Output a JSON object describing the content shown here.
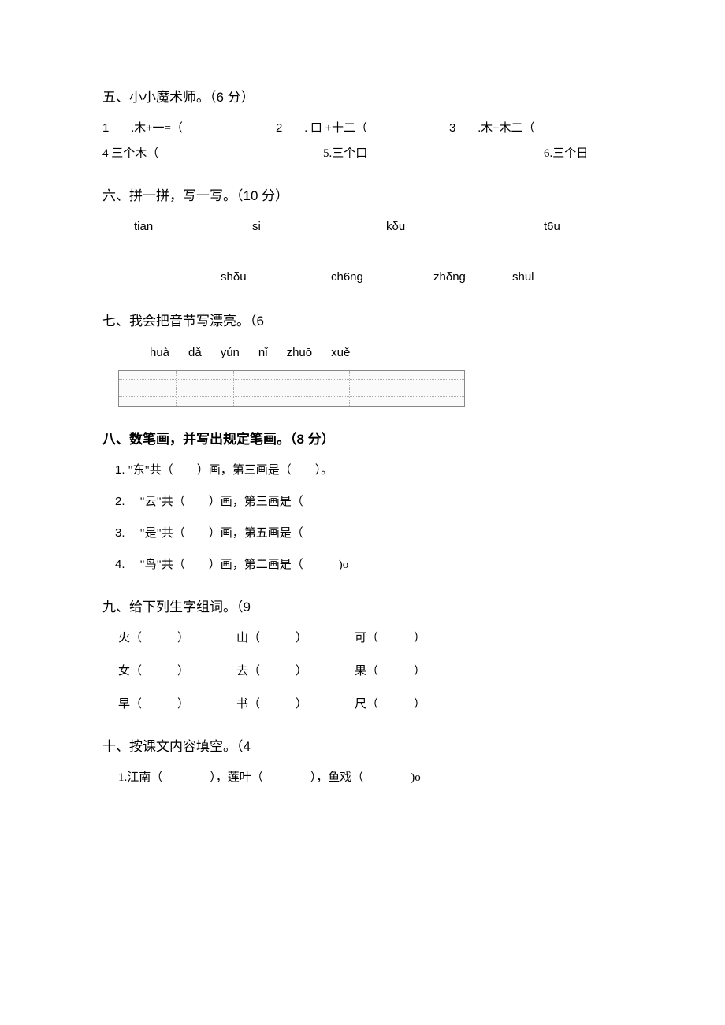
{
  "sections": {
    "s5": {
      "title": "五、小小魔术师。（",
      "points": "6 分",
      "close": "）"
    },
    "s6": {
      "title": "六、拼一拼，写一写。（",
      "points": "10 分",
      "close": "）"
    },
    "s7": {
      "title": "七、我会把音节写漂亮。（",
      "points": "6"
    },
    "s8": {
      "title": "八、数笔画，并写出规定笔画。（8 分）"
    },
    "s9": {
      "title": "九、给下列生字组词。（",
      "points": "9"
    },
    "s10": {
      "title": "十、按课文内容填空。（",
      "points": "4"
    }
  },
  "q5": {
    "row1": [
      {
        "n": "1",
        "text": ".木+一=（"
      },
      {
        "n": "2",
        "text": ". 口 +十二（"
      },
      {
        "n": "3",
        "text": ".木+木二（"
      }
    ],
    "row2": [
      "4 三个木（",
      "5.三个口",
      "6.三个日"
    ]
  },
  "q6": {
    "row1": [
      "tian",
      "si",
      "kδu",
      "t6u"
    ],
    "row2": [
      "shδu",
      "ch6ng",
      "zhδng",
      "shul"
    ]
  },
  "q7": {
    "syllables": [
      "huà",
      "dǎ",
      "yún",
      "nǐ",
      "zhuō",
      "xuě"
    ]
  },
  "q8": {
    "items": [
      {
        "n": "1.",
        "text": "\"东\"共（　　）画，第三画是（　　）。"
      },
      {
        "n": "2.",
        "text": "　\"云\"共（　　）画，第三画是（"
      },
      {
        "n": "3.",
        "text": "　\"是\"共（　　）画，第五画是（"
      },
      {
        "n": "4.",
        "text": "　\"鸟\"共（　　）画，第二画是（　　　)o"
      }
    ]
  },
  "q9": {
    "rows": [
      [
        "火（　　　）",
        "山（　　　）",
        "可（　　　）"
      ],
      [
        "女（　　　）",
        "去（　　　）",
        "果（　　　）"
      ],
      [
        "早（　　　）",
        "书（　　　）",
        "尺（　　　）"
      ]
    ]
  },
  "q10": {
    "item1": "1.江南（　　　　），莲叶（　　　　），鱼戏（　　　　)o"
  }
}
